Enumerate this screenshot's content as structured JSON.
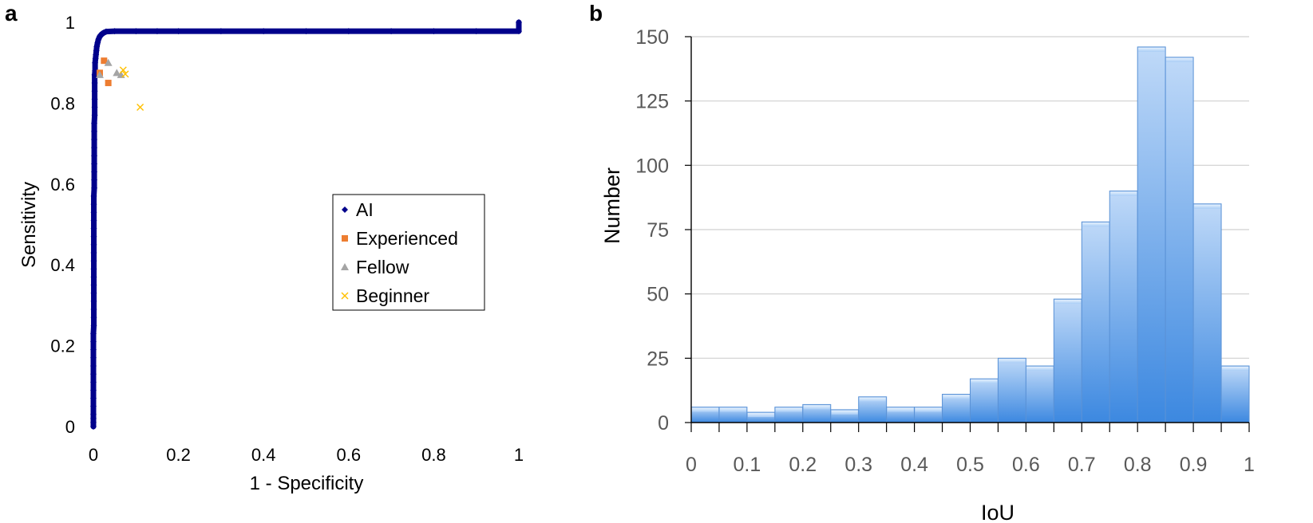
{
  "chart_data": [
    {
      "panel_label": "a",
      "type": "scatter",
      "xlabel": "1 - Specificity",
      "ylabel": "Sensitivity",
      "xlim": [
        0,
        1
      ],
      "ylim": [
        0,
        1
      ],
      "xticks": [
        "0",
        "0.2",
        "0.4",
        "0.6",
        "0.8",
        "1"
      ],
      "yticks": [
        "0",
        "0.2",
        "0.4",
        "0.6",
        "0.8",
        "1"
      ],
      "grid": false,
      "legend_position": "center-right",
      "series": [
        {
          "name": "AI",
          "marker": "diamond",
          "color": "#00008B",
          "points": [
            [
              0,
              0
            ],
            [
              0,
              0.01
            ],
            [
              0,
              0.02
            ],
            [
              0,
              0.03
            ],
            [
              0,
              0.05
            ],
            [
              0,
              0.07
            ],
            [
              0,
              0.09
            ],
            [
              0,
              0.11
            ],
            [
              0,
              0.13
            ],
            [
              0,
              0.15
            ],
            [
              0,
              0.17
            ],
            [
              0,
              0.19
            ],
            [
              0,
              0.21
            ],
            [
              0,
              0.23
            ],
            [
              0.001,
              0.25
            ],
            [
              0.001,
              0.27
            ],
            [
              0.001,
              0.29
            ],
            [
              0.001,
              0.31
            ],
            [
              0.001,
              0.33
            ],
            [
              0.001,
              0.35
            ],
            [
              0.001,
              0.37
            ],
            [
              0.001,
              0.39
            ],
            [
              0.001,
              0.41
            ],
            [
              0.001,
              0.43
            ],
            [
              0.001,
              0.45
            ],
            [
              0.001,
              0.47
            ],
            [
              0.001,
              0.49
            ],
            [
              0.001,
              0.51
            ],
            [
              0.001,
              0.53
            ],
            [
              0.001,
              0.55
            ],
            [
              0.001,
              0.57
            ],
            [
              0.002,
              0.59
            ],
            [
              0.002,
              0.61
            ],
            [
              0.002,
              0.63
            ],
            [
              0.002,
              0.65
            ],
            [
              0.002,
              0.67
            ],
            [
              0.002,
              0.69
            ],
            [
              0.002,
              0.71
            ],
            [
              0.002,
              0.73
            ],
            [
              0.002,
              0.75
            ],
            [
              0.003,
              0.77
            ],
            [
              0.003,
              0.79
            ],
            [
              0.003,
              0.81
            ],
            [
              0.003,
              0.83
            ],
            [
              0.003,
              0.85
            ],
            [
              0.003,
              0.87
            ],
            [
              0.004,
              0.88
            ],
            [
              0.004,
              0.9
            ],
            [
              0.005,
              0.91
            ],
            [
              0.006,
              0.92
            ],
            [
              0.007,
              0.93
            ],
            [
              0.008,
              0.94
            ],
            [
              0.01,
              0.95
            ],
            [
              0.012,
              0.958
            ],
            [
              0.015,
              0.965
            ],
            [
              0.019,
              0.97
            ],
            [
              0.024,
              0.974
            ],
            [
              0.03,
              0.977
            ],
            [
              0.05,
              0.978
            ],
            [
              0.1,
              0.978
            ],
            [
              0.15,
              0.978
            ],
            [
              0.2,
              0.978
            ],
            [
              0.3,
              0.978
            ],
            [
              0.4,
              0.978
            ],
            [
              0.5,
              0.978
            ],
            [
              0.6,
              0.978
            ],
            [
              0.7,
              0.978
            ],
            [
              0.8,
              0.978
            ],
            [
              0.9,
              0.978
            ],
            [
              1,
              0.978
            ],
            [
              1,
              1
            ]
          ]
        },
        {
          "name": "Experienced",
          "marker": "square",
          "color": "#ED7D31",
          "points": [
            [
              0.025,
              0.905
            ],
            [
              0.015,
              0.875
            ],
            [
              0.035,
              0.85
            ]
          ]
        },
        {
          "name": "Fellow",
          "marker": "triangle",
          "color": "#A5A5A5",
          "points": [
            [
              0.035,
              0.9
            ],
            [
              0.055,
              0.875
            ],
            [
              0.065,
              0.87
            ],
            [
              0.015,
              0.87
            ]
          ]
        },
        {
          "name": "Beginner",
          "marker": "x",
          "color": "#FFC000",
          "points": [
            [
              0.07,
              0.882
            ],
            [
              0.075,
              0.872
            ],
            [
              0.11,
              0.79
            ]
          ]
        }
      ]
    },
    {
      "panel_label": "b",
      "type": "bar",
      "xlabel": "IoU",
      "ylabel": "Number",
      "xlim": [
        0,
        1
      ],
      "ylim": [
        0,
        150
      ],
      "xticks": [
        "0",
        "0.1",
        "0.2",
        "0.3",
        "0.4",
        "0.5",
        "0.6",
        "0.7",
        "0.8",
        "0.9",
        "1"
      ],
      "yticks": [
        "0",
        "25",
        "50",
        "75",
        "100",
        "125",
        "150"
      ],
      "grid": true,
      "bin_width": 0.05,
      "bin_starts": [
        0,
        0.05,
        0.1,
        0.15,
        0.2,
        0.25,
        0.3,
        0.35,
        0.4,
        0.45,
        0.5,
        0.55,
        0.6,
        0.65,
        0.7,
        0.75,
        0.8,
        0.85,
        0.9,
        0.95
      ],
      "values": [
        6,
        6,
        4,
        6,
        7,
        5,
        10,
        6,
        6,
        11,
        17,
        25,
        22,
        48,
        78,
        90,
        146,
        142,
        85,
        22
      ],
      "bar_color": "#6FA8EE"
    }
  ]
}
